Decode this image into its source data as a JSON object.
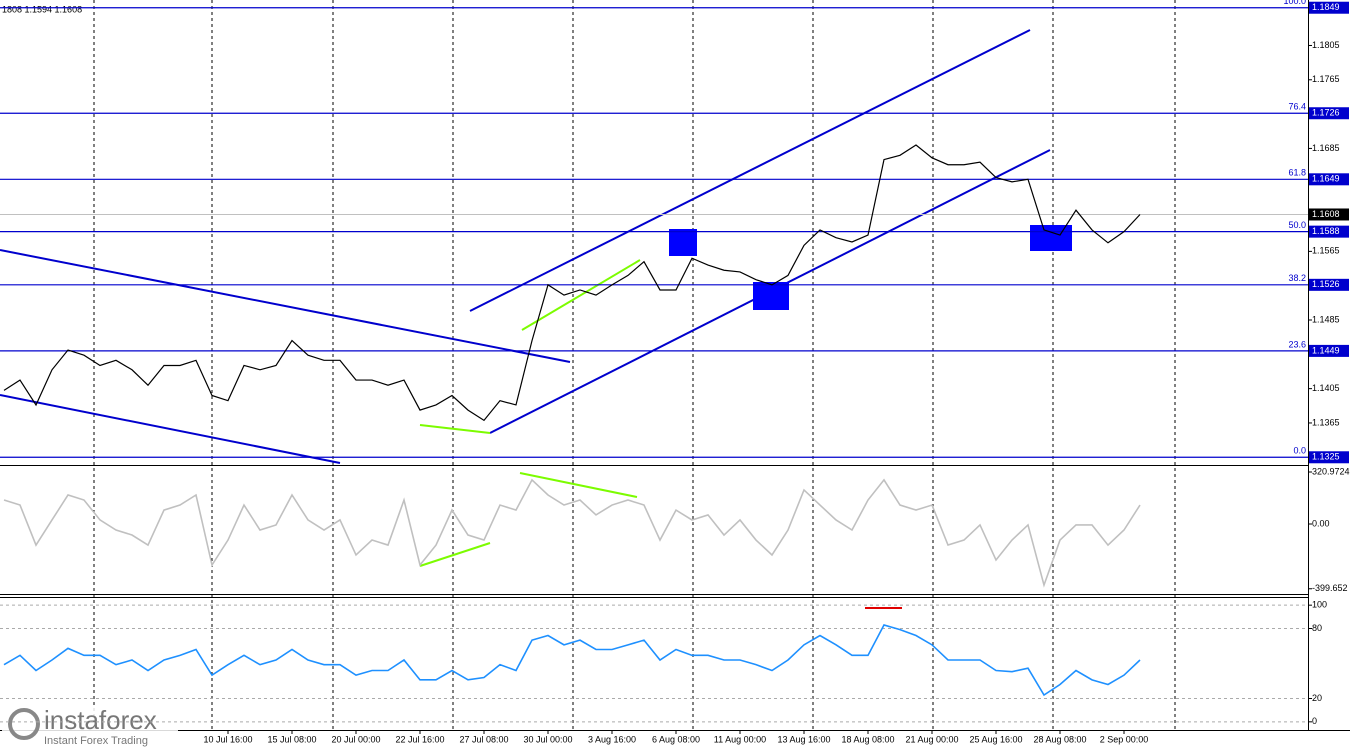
{
  "watermark": {
    "brand": "instaforex",
    "tagline": "Instant Forex Trading"
  },
  "chart_data": [
    {
      "type": "line",
      "title": "1808 1.1594 1.1608",
      "color": "#000000",
      "values": [
        1.1403,
        1.1415,
        1.1386,
        1.1427,
        1.145,
        1.1444,
        1.1432,
        1.1438,
        1.1427,
        1.1409,
        1.1432,
        1.1432,
        1.1438,
        1.1397,
        1.1391,
        1.1432,
        1.1427,
        1.1432,
        1.1461,
        1.1444,
        1.1438,
        1.1438,
        1.1415,
        1.1415,
        1.1409,
        1.1415,
        1.138,
        1.1386,
        1.1397,
        1.138,
        1.1368,
        1.1391,
        1.1386,
        1.1461,
        1.1526,
        1.1514,
        1.152,
        1.1514,
        1.1526,
        1.1537,
        1.1553,
        1.152,
        1.152,
        1.1557,
        1.1549,
        1.1543,
        1.1541,
        1.1532,
        1.1526,
        1.1537,
        1.1572,
        1.159,
        1.1581,
        1.1576,
        1.1584,
        1.1672,
        1.1677,
        1.1689,
        1.1674,
        1.1666,
        1.1666,
        1.1669,
        1.1651,
        1.1646,
        1.1649,
        1.159,
        1.1584,
        1.1613,
        1.159,
        1.1575,
        1.1588,
        1.1608
      ],
      "ylim": [
        1.1316,
        1.1858
      ],
      "yticks": [
        1.1805,
        1.1765,
        1.1685,
        1.1565,
        1.1485,
        1.1405,
        1.1365
      ],
      "fib_levels": [
        {
          "label": "100.0",
          "value": 1.1849
        },
        {
          "label": "76.4",
          "value": 1.1726
        },
        {
          "label": "61.8",
          "value": 1.1649
        },
        {
          "label": "50.0",
          "value": 1.1588
        },
        {
          "label": "38.2",
          "value": 1.1526
        },
        {
          "label": "23.6",
          "value": 1.1449
        },
        {
          "label": "0.0",
          "value": 1.1325
        }
      ],
      "last_price": 1.1608
    },
    {
      "type": "line",
      "color": "#c0c0c0",
      "values": [
        148,
        117,
        -130,
        25,
        179,
        148,
        25,
        -37,
        -68,
        -130,
        86,
        117,
        179,
        -253,
        -99,
        117,
        -37,
        -6,
        179,
        25,
        -37,
        25,
        -191,
        -99,
        -130,
        148,
        -253,
        -130,
        86,
        -68,
        -99,
        117,
        86,
        272,
        179,
        117,
        148,
        56,
        117,
        148,
        117,
        -99,
        86,
        25,
        56,
        -68,
        25,
        -99,
        -191,
        -37,
        210,
        117,
        25,
        -37,
        148,
        272,
        117,
        86,
        117,
        -130,
        -99,
        -6,
        -222,
        -99,
        -6,
        -377,
        -99,
        -6,
        -6,
        -130,
        -37,
        117
      ],
      "ylim": [
        -432,
        358
      ],
      "yticks": [
        320.9724,
        {
          "value": 0,
          "label": "0.00"
        },
        {
          "value": -399.6524,
          "label": "-399.652"
        }
      ]
    },
    {
      "type": "line",
      "color": "#1e90ff",
      "values": [
        49,
        57,
        44,
        53,
        63,
        57,
        57,
        49,
        53,
        44,
        53,
        57,
        62,
        40,
        49,
        57,
        49,
        53,
        62,
        53,
        49,
        49,
        40,
        44,
        44,
        53,
        36,
        36,
        44,
        36,
        38,
        49,
        44,
        70,
        74,
        66,
        70,
        62,
        62,
        66,
        70,
        53,
        62,
        57,
        57,
        53,
        53,
        49,
        44,
        53,
        66,
        74,
        66,
        57,
        57,
        83,
        79,
        74,
        66,
        53,
        53,
        53,
        44,
        43,
        46,
        23,
        32,
        44,
        36,
        32,
        40,
        53
      ],
      "ylim": [
        -7,
        107
      ],
      "yticks": [
        0,
        20,
        80,
        100
      ],
      "grid": true,
      "categories": [
        null,
        null,
        null,
        null,
        null,
        null,
        null,
        null,
        null,
        null,
        null,
        null,
        null,
        null,
        "10 Jul 16:00",
        null,
        null,
        null,
        "15 Jul 08:00",
        null,
        null,
        null,
        "20 Jul 00:00",
        null,
        null,
        null,
        "22 Jul 16:00",
        null,
        null,
        null,
        "27 Jul 08:00",
        null,
        null,
        null,
        "30 Jul 00:00",
        null,
        null,
        null,
        "3 Aug 16:00",
        null,
        null,
        null,
        "6 Aug 08:00",
        null,
        null,
        null,
        "11 Aug 00:00",
        null,
        null,
        null,
        "13 Aug 16:00",
        null,
        null,
        null,
        "18 Aug 08:00",
        null,
        null,
        null,
        "21 Aug 00:00",
        null,
        null,
        null,
        "25 Aug 16:00",
        null,
        null,
        null,
        "28 Aug 08:00",
        null,
        null,
        null,
        "2 Sep 00:00",
        null
      ]
    }
  ]
}
